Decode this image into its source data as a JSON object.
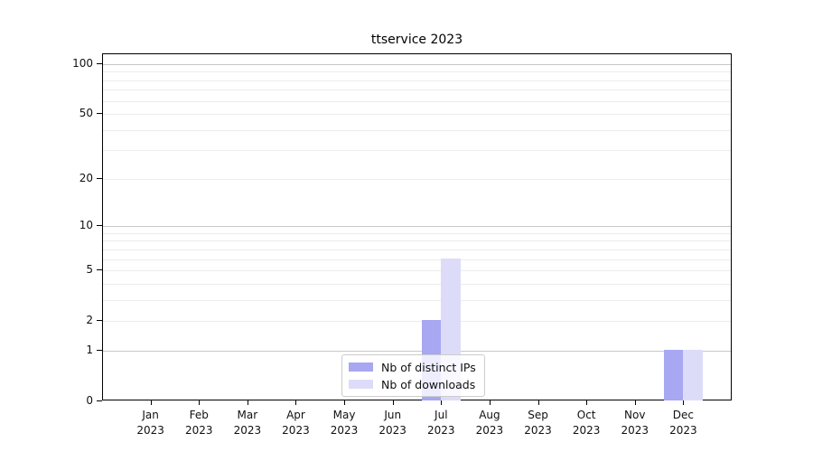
{
  "chart_data": {
    "type": "bar",
    "title": "ttservice 2023",
    "categories": [
      "Jan",
      "Feb",
      "Mar",
      "Apr",
      "May",
      "Jun",
      "Jul",
      "Aug",
      "Sep",
      "Oct",
      "Nov",
      "Dec"
    ],
    "category_year": "2023",
    "series": [
      {
        "name": "Nb of distinct IPs",
        "color": "#a7a7f2",
        "values": [
          0,
          0,
          0,
          0,
          0,
          0,
          2,
          0,
          0,
          0,
          0,
          1
        ]
      },
      {
        "name": "Nb of downloads",
        "color": "#dcdcf9",
        "values": [
          0,
          0,
          0,
          0,
          0,
          0,
          6,
          0,
          0,
          0,
          0,
          1
        ]
      }
    ],
    "yscale": "log1p",
    "ytick_values": [
      0,
      1,
      2,
      5,
      10,
      20,
      50,
      100
    ],
    "major_grid_values": [
      1,
      10,
      100
    ],
    "minor_grid_values": [
      2,
      3,
      4,
      5,
      6,
      7,
      8,
      9,
      20,
      30,
      40,
      50,
      60,
      70,
      80,
      90
    ],
    "ylim": [
      0,
      114
    ],
    "xlim": [
      -1,
      12
    ],
    "grid": true,
    "legend_position": "lower center",
    "colors": {
      "major_grid": "#c8c8c8",
      "minor_grid": "#ececec",
      "spine": "#000000",
      "background": "#ffffff"
    }
  }
}
